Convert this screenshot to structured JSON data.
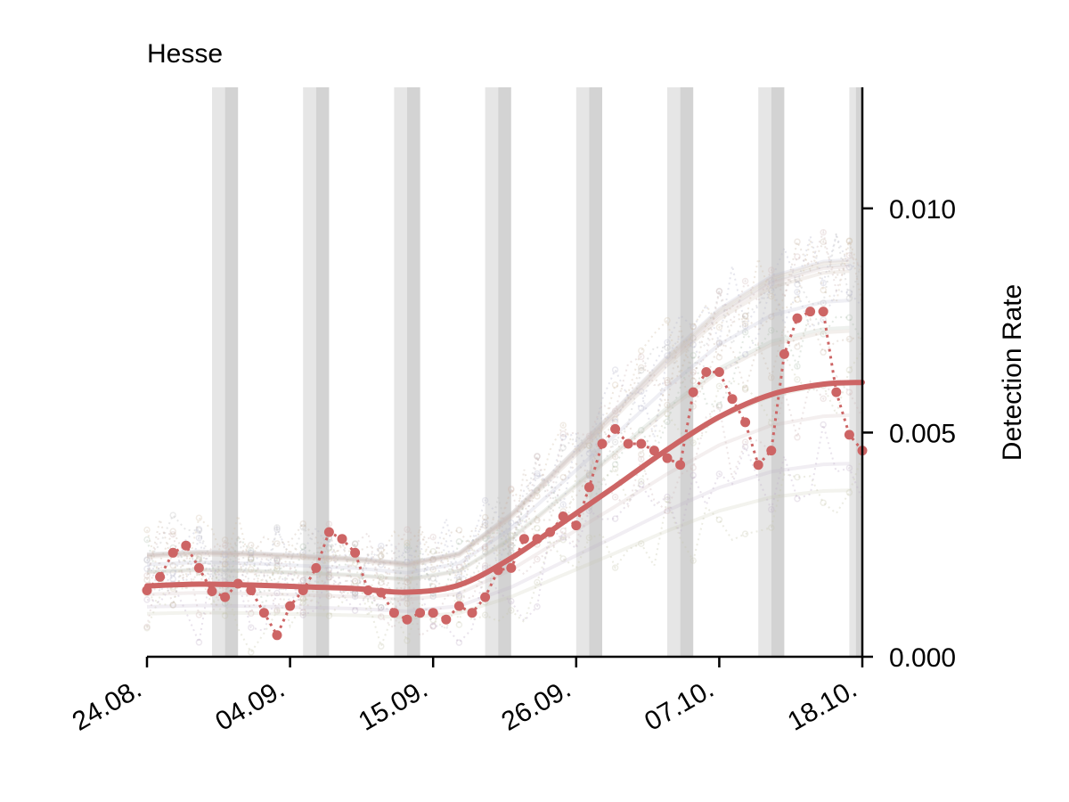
{
  "chart_data": {
    "type": "line",
    "title": "Hesse",
    "xlabel": "",
    "ylabel": "Detection Rate",
    "x_axis": "date",
    "x_start": "24.08.",
    "x_tick_labels": [
      "24.08.",
      "04.09.",
      "15.09.",
      "26.09.",
      "07.10.",
      "18.10."
    ],
    "ylim": [
      0.0,
      0.0127
    ],
    "y_ticks": [
      0.0,
      0.005,
      0.01
    ],
    "y_tick_labels": [
      "0.000",
      "0.005",
      "0.010"
    ],
    "y_axis_side": "right",
    "grid": false,
    "legend": "none",
    "colors": {
      "highlight": "#cd6565",
      "weekend_band_light": "#e6e6e6",
      "weekend_band_dark": "#d3d3d3"
    },
    "weekend_bands": [
      {
        "start": "29.08.",
        "end": "31.08."
      },
      {
        "start": "05.09.",
        "end": "07.09."
      },
      {
        "start": "12.09.",
        "end": "14.09."
      },
      {
        "start": "19.09.",
        "end": "21.09."
      },
      {
        "start": "26.09.",
        "end": "28.09."
      },
      {
        "start": "03.10.",
        "end": "05.10."
      },
      {
        "start": "10.10.",
        "end": "12.10."
      },
      {
        "start": "17.10.",
        "end": "19.10."
      }
    ],
    "series": [
      {
        "role": "daily",
        "x": [
          "24.08.",
          "25.08.",
          "26.08.",
          "27.08.",
          "28.08.",
          "29.08.",
          "30.08.",
          "31.08.",
          "01.09.",
          "02.09.",
          "03.09.",
          "04.09.",
          "05.09.",
          "06.09.",
          "07.09.",
          "08.09.",
          "09.09.",
          "10.09.",
          "11.09.",
          "12.09.",
          "13.09.",
          "14.09.",
          "15.09.",
          "16.09.",
          "17.09.",
          "18.09.",
          "19.09.",
          "20.09.",
          "21.09.",
          "22.09.",
          "23.09.",
          "24.09.",
          "25.09.",
          "26.09.",
          "27.09.",
          "28.09.",
          "29.09.",
          "30.09.",
          "01.10.",
          "02.10.",
          "03.10.",
          "04.10.",
          "05.10.",
          "06.10.",
          "07.10.",
          "08.10.",
          "09.10.",
          "10.10.",
          "11.10.",
          "12.10.",
          "13.10.",
          "14.10.",
          "15.10.",
          "16.10.",
          "17.10.",
          "18.10."
        ],
        "values": [
          0.00148,
          0.00178,
          0.00232,
          0.00248,
          0.00198,
          0.00146,
          0.00133,
          0.00163,
          0.00148,
          0.00098,
          0.00048,
          0.00113,
          0.00148,
          0.00198,
          0.00278,
          0.00263,
          0.00232,
          0.00148,
          0.00143,
          0.00098,
          0.00083,
          0.00098,
          0.00098,
          0.00083,
          0.00113,
          0.00098,
          0.00133,
          0.00193,
          0.00198,
          0.00263,
          0.00263,
          0.00278,
          0.00313,
          0.00293,
          0.00378,
          0.00475,
          0.00508,
          0.00475,
          0.00475,
          0.0046,
          0.00443,
          0.00428,
          0.0059,
          0.00635,
          0.00635,
          0.00575,
          0.00523,
          0.00428,
          0.0046,
          0.00675,
          0.00755,
          0.0077,
          0.0077,
          0.0059,
          0.00495,
          0.0046
        ]
      },
      {
        "role": "trend",
        "x": [
          "24.08.",
          "28.08.",
          "01.09.",
          "05.09.",
          "09.09.",
          "13.09.",
          "17.09.",
          "21.09.",
          "25.09.",
          "29.09.",
          "03.10.",
          "07.10.",
          "11.10.",
          "15.10.",
          "18.10."
        ],
        "values": [
          0.00158,
          0.00162,
          0.0016,
          0.00156,
          0.00152,
          0.00144,
          0.0016,
          0.0022,
          0.003,
          0.0038,
          0.00462,
          0.00535,
          0.00585,
          0.00608,
          0.00612
        ]
      }
    ]
  }
}
